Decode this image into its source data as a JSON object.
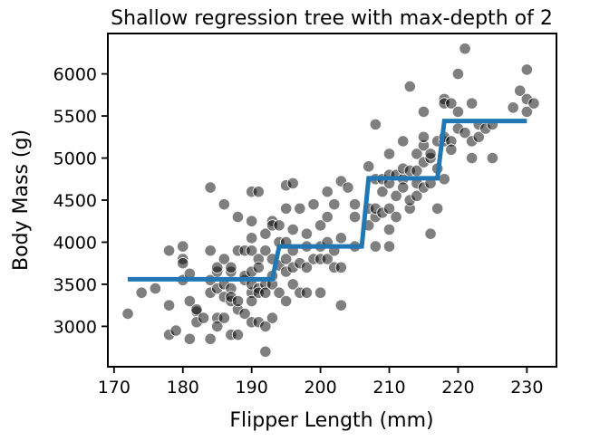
{
  "chart_data": {
    "type": "scatter",
    "title": "Shallow regression tree with max-depth of 2",
    "xlabel": "Flipper Length (mm)",
    "ylabel": "Body Mass (g)",
    "xlim": [
      169.1,
      234.3
    ],
    "ylim": [
      2520,
      6480
    ],
    "xticks": [
      170,
      180,
      190,
      200,
      210,
      220,
      230
    ],
    "yticks": [
      3000,
      3500,
      4000,
      4500,
      5000,
      5500,
      6000
    ],
    "grid": false,
    "point_color": "#000000",
    "point_alpha": 0.5,
    "line_color": "#1f77b4",
    "series": [
      {
        "kind": "points",
        "points": [
          [
            172,
            3150
          ],
          [
            174,
            3400
          ],
          [
            176,
            3450
          ],
          [
            178,
            3900
          ],
          [
            178,
            3250
          ],
          [
            178,
            2900
          ],
          [
            179,
            2950
          ],
          [
            180,
            3550
          ],
          [
            180,
            3800
          ],
          [
            180,
            3750
          ],
          [
            180,
            3950
          ],
          [
            181,
            3300
          ],
          [
            181,
            3625
          ],
          [
            181,
            2850
          ],
          [
            182,
            3175
          ],
          [
            182,
            3200
          ],
          [
            182,
            3050
          ],
          [
            183,
            3100
          ],
          [
            184,
            3900
          ],
          [
            184,
            4650
          ],
          [
            184,
            3550
          ],
          [
            184,
            3400
          ],
          [
            184,
            2850
          ],
          [
            185,
            3650
          ],
          [
            185,
            3700
          ],
          [
            185,
            3100
          ],
          [
            185,
            3450
          ],
          [
            185,
            3000
          ],
          [
            186,
            4450
          ],
          [
            186,
            3500
          ],
          [
            186,
            3800
          ],
          [
            186,
            3350
          ],
          [
            186,
            3100
          ],
          [
            187,
            3300
          ],
          [
            187,
            3650
          ],
          [
            187,
            3450
          ],
          [
            187,
            2900
          ],
          [
            187,
            3350
          ],
          [
            187,
            3700
          ],
          [
            188,
            3900
          ],
          [
            188,
            4300
          ],
          [
            188,
            2900
          ],
          [
            188,
            3200
          ],
          [
            188,
            3300
          ],
          [
            189,
            3900
          ],
          [
            189,
            3550
          ],
          [
            189,
            3600
          ],
          [
            189,
            3150
          ],
          [
            190,
            4250
          ],
          [
            190,
            4050
          ],
          [
            190,
            3400
          ],
          [
            190,
            3900
          ],
          [
            190,
            3500
          ],
          [
            190,
            3300
          ],
          [
            190,
            3050
          ],
          [
            190,
            4600
          ],
          [
            190,
            3650
          ],
          [
            191,
            3450
          ],
          [
            191,
            3800
          ],
          [
            191,
            3050
          ],
          [
            191,
            3700
          ],
          [
            191,
            4600
          ],
          [
            191,
            3400
          ],
          [
            192,
            4100
          ],
          [
            192,
            3500
          ],
          [
            192,
            3000
          ],
          [
            192,
            3400
          ],
          [
            192,
            2700
          ],
          [
            192,
            3900
          ],
          [
            193,
            4250
          ],
          [
            193,
            3100
          ],
          [
            193,
            3500
          ],
          [
            193,
            3800
          ],
          [
            193,
            3600
          ],
          [
            193,
            4200
          ],
          [
            194,
            4000
          ],
          [
            194,
            3725
          ],
          [
            194,
            3400
          ],
          [
            194,
            4200
          ],
          [
            195,
            4000
          ],
          [
            195,
            3650
          ],
          [
            195,
            4675
          ],
          [
            195,
            3800
          ],
          [
            195,
            3300
          ],
          [
            195,
            4400
          ],
          [
            196,
            4150
          ],
          [
            196,
            3700
          ],
          [
            196,
            3500
          ],
          [
            196,
            4700
          ],
          [
            196,
            3900
          ],
          [
            197,
            3400
          ],
          [
            197,
            4400
          ],
          [
            197,
            3750
          ],
          [
            198,
            3700
          ],
          [
            198,
            4100
          ],
          [
            198,
            3950
          ],
          [
            198,
            3400
          ],
          [
            199,
            3800
          ],
          [
            199,
            4450
          ],
          [
            200,
            3800
          ],
          [
            200,
            3950
          ],
          [
            200,
            4200
          ],
          [
            200,
            3400
          ],
          [
            201,
            4000
          ],
          [
            201,
            3800
          ],
          [
            201,
            4600
          ],
          [
            201,
            4300
          ],
          [
            202,
            3700
          ],
          [
            202,
            4450
          ],
          [
            202,
            3900
          ],
          [
            203,
            4050
          ],
          [
            203,
            3250
          ],
          [
            203,
            3700
          ],
          [
            203,
            4725
          ],
          [
            204,
            4650
          ],
          [
            205,
            4450
          ],
          [
            205,
            3950
          ],
          [
            205,
            4300
          ],
          [
            207,
            4400
          ],
          [
            207,
            4900
          ],
          [
            207,
            4200
          ],
          [
            208,
            4300
          ],
          [
            208,
            4400
          ],
          [
            208,
            4750
          ],
          [
            208,
            5400
          ],
          [
            208,
            3950
          ],
          [
            209,
            4350
          ],
          [
            209,
            4600
          ],
          [
            209,
            4750
          ],
          [
            210,
            3950
          ],
          [
            210,
            4400
          ],
          [
            210,
            4700
          ],
          [
            210,
            4800
          ],
          [
            210,
            4150
          ],
          [
            210,
            5050
          ],
          [
            211,
            4800
          ],
          [
            211,
            4300
          ],
          [
            211,
            4550
          ],
          [
            212,
            4750
          ],
          [
            212,
            4875
          ],
          [
            212,
            4650
          ],
          [
            212,
            5200
          ],
          [
            213,
            4400
          ],
          [
            213,
            4500
          ],
          [
            213,
            4850
          ],
          [
            213,
            5850
          ],
          [
            214,
            4850
          ],
          [
            214,
            4700
          ],
          [
            214,
            5050
          ],
          [
            214,
            4550
          ],
          [
            215,
            4650
          ],
          [
            215,
            5150
          ],
          [
            215,
            5550
          ],
          [
            215,
            5250
          ],
          [
            215,
            4950
          ],
          [
            216,
            5000
          ],
          [
            216,
            5050
          ],
          [
            216,
            4700
          ],
          [
            216,
            4100
          ],
          [
            217,
            5200
          ],
          [
            217,
            4875
          ],
          [
            217,
            4400
          ],
          [
            218,
            5700
          ],
          [
            218,
            5650
          ],
          [
            218,
            5200
          ],
          [
            218,
            4750
          ],
          [
            218,
            5250
          ],
          [
            219,
            5200
          ],
          [
            219,
            5650
          ],
          [
            219,
            5100
          ],
          [
            220,
            5550
          ],
          [
            220,
            5350
          ],
          [
            220,
            6000
          ],
          [
            221,
            6300
          ],
          [
            221,
            5300
          ],
          [
            222,
            5200
          ],
          [
            222,
            5650
          ],
          [
            222,
            5000
          ],
          [
            223,
            5250
          ],
          [
            223,
            5400
          ],
          [
            224,
            5350
          ],
          [
            225,
            5400
          ],
          [
            225,
            5000
          ],
          [
            228,
            5600
          ],
          [
            229,
            5800
          ],
          [
            230,
            5700
          ],
          [
            230,
            6050
          ],
          [
            230,
            5550
          ],
          [
            231,
            5650
          ]
        ]
      },
      {
        "kind": "step-line",
        "points": [
          [
            172,
            3560
          ],
          [
            193,
            3560
          ],
          [
            194,
            3950
          ],
          [
            206,
            3950
          ],
          [
            207,
            4760
          ],
          [
            217,
            4760
          ],
          [
            218,
            5440
          ],
          [
            230,
            5440
          ]
        ]
      }
    ]
  }
}
